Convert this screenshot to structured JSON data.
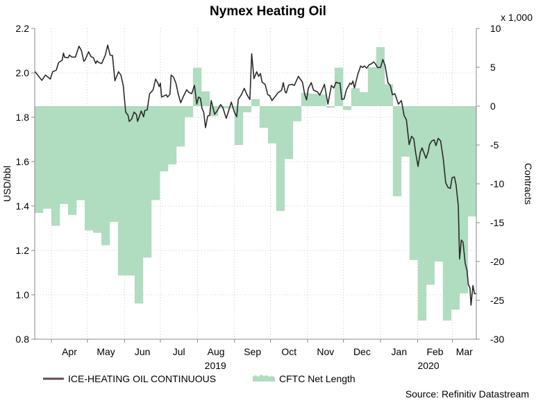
{
  "chart_data": {
    "type": "line+bar",
    "title": "Nymex Heating Oil",
    "ylabel_left": "USD/bbl",
    "ylabel_right": "Contracts",
    "right_multiplier_label": "x 1,000",
    "source": "Source: Refinitiv Datastream",
    "ylim_left": [
      0.8,
      2.2
    ],
    "yticks_left": [
      "2.2",
      "2.0",
      "1.8",
      "1.6",
      "1.4",
      "1.2",
      "1.0",
      "0.8"
    ],
    "ylim_right": [
      -30,
      10
    ],
    "yticks_right": [
      "10",
      "5",
      "0",
      "-5",
      "-10",
      "-15",
      "-20",
      "-25",
      "-30"
    ],
    "x_unit": "days since 2019-03-18",
    "xlim": [
      0,
      369
    ],
    "month_boundaries": [
      14,
      44,
      75,
      105,
      136,
      167,
      197,
      228,
      258,
      289,
      320,
      349
    ],
    "months": [
      {
        "label": "Apr",
        "start": 14,
        "end": 44
      },
      {
        "label": "May",
        "start": 44,
        "end": 75
      },
      {
        "label": "Jun",
        "start": 75,
        "end": 105
      },
      {
        "label": "Jul",
        "start": 105,
        "end": 136
      },
      {
        "label": "Aug",
        "start": 136,
        "end": 167
      },
      {
        "label": "Sep",
        "start": 167,
        "end": 197
      },
      {
        "label": "Oct",
        "start": 197,
        "end": 228
      },
      {
        "label": "Nov",
        "start": 228,
        "end": 258
      },
      {
        "label": "Dec",
        "start": 258,
        "end": 289
      },
      {
        "label": "Jan",
        "start": 289,
        "end": 320
      },
      {
        "label": "Feb",
        "start": 320,
        "end": 349
      },
      {
        "label": "Mar",
        "start": 349,
        "end": 369
      }
    ],
    "years": [
      {
        "label": "2019",
        "center": 151
      },
      {
        "label": "2020",
        "center": 329
      }
    ],
    "grid": true,
    "legend_position": "bottom-left",
    "series": [
      {
        "name": "ICE-HEATING OIL CONTINUOUS",
        "type": "line",
        "axis": "left",
        "color": "#2a2a2a",
        "legend_color": "#604858",
        "points": [
          [
            0,
            2.007
          ],
          [
            6,
            1.966
          ],
          [
            9,
            1.99
          ],
          [
            13,
            1.972
          ],
          [
            15,
            2.005
          ],
          [
            18,
            2.012
          ],
          [
            20,
            2.047
          ],
          [
            23,
            2.057
          ],
          [
            24,
            2.089
          ],
          [
            25,
            2.07
          ],
          [
            28,
            2.068
          ],
          [
            29,
            2.08
          ],
          [
            31,
            2.071
          ],
          [
            34,
            2.071
          ],
          [
            37,
            2.12
          ],
          [
            39,
            2.101
          ],
          [
            41,
            2.052
          ],
          [
            42,
            2.057
          ],
          [
            45,
            2.095
          ],
          [
            47,
            2.073
          ],
          [
            49,
            2.068
          ],
          [
            51,
            2.042
          ],
          [
            52,
            2.054
          ],
          [
            54,
            2.045
          ],
          [
            56,
            2.042
          ],
          [
            59,
            2.08
          ],
          [
            61,
            2.125
          ],
          [
            63,
            2.08
          ],
          [
            65,
            2.078
          ],
          [
            67,
            1.964
          ],
          [
            70,
            2.005
          ],
          [
            72,
            1.99
          ],
          [
            74,
            1.943
          ],
          [
            76,
            1.823
          ],
          [
            78,
            1.809
          ],
          [
            79,
            1.781
          ],
          [
            81,
            1.792
          ],
          [
            83,
            1.823
          ],
          [
            85,
            1.812
          ],
          [
            86,
            1.781
          ],
          [
            89,
            1.828
          ],
          [
            91,
            1.802
          ],
          [
            92,
            1.83
          ],
          [
            94,
            1.833
          ],
          [
            96,
            1.906
          ],
          [
            98,
            1.917
          ],
          [
            99,
            1.924
          ],
          [
            101,
            1.972
          ],
          [
            103,
            1.953
          ],
          [
            104,
            1.938
          ],
          [
            105,
            1.953
          ],
          [
            106,
            1.891
          ],
          [
            108,
            1.896
          ],
          [
            110,
            1.901
          ],
          [
            111,
            1.891
          ],
          [
            113,
            1.903
          ],
          [
            114,
            1.99
          ],
          [
            116,
            1.981
          ],
          [
            118,
            1.953
          ],
          [
            120,
            1.903
          ],
          [
            122,
            1.865
          ],
          [
            124,
            1.891
          ],
          [
            127,
            1.924
          ],
          [
            128.8,
            1.912
          ],
          [
            131.1,
            1.906
          ],
          [
            133.5,
            1.943
          ],
          [
            135.4,
            1.859
          ],
          [
            136.9,
            1.891
          ],
          [
            138.5,
            1.885
          ],
          [
            139.8,
            1.839
          ],
          [
            141.2,
            1.823
          ],
          [
            142.7,
            1.753
          ],
          [
            144.6,
            1.805
          ],
          [
            146.2,
            1.809
          ],
          [
            147.5,
            1.875
          ],
          [
            150.4,
            1.813
          ],
          [
            152.4,
            1.828
          ],
          [
            155.3,
            1.857
          ],
          [
            157.2,
            1.844
          ],
          [
            160.1,
            1.795
          ],
          [
            162,
            1.828
          ],
          [
            164.3,
            1.868
          ],
          [
            166.8,
            1.823
          ],
          [
            168.8,
            1.802
          ],
          [
            170.1,
            1.88
          ],
          [
            172.6,
            1.901
          ],
          [
            175.1,
            1.93
          ],
          [
            177.4,
            1.901
          ],
          [
            179.8,
            1.88
          ],
          [
            181.3,
            2.086
          ],
          [
            183.2,
            1.974
          ],
          [
            185.5,
            2.005
          ],
          [
            187.1,
            1.984
          ],
          [
            188.6,
            1.997
          ],
          [
            190,
            1.958
          ],
          [
            192.5,
            1.948
          ],
          [
            194.8,
            1.901
          ],
          [
            196.3,
            1.898
          ],
          [
            198.3,
            1.875
          ],
          [
            200.6,
            1.891
          ],
          [
            203.5,
            1.911
          ],
          [
            206.4,
            1.922
          ],
          [
            207.7,
            1.956
          ],
          [
            209.3,
            1.914
          ],
          [
            210.2,
            1.909
          ],
          [
            212.2,
            1.945
          ],
          [
            215.1,
            1.948
          ],
          [
            217,
            1.943
          ],
          [
            220.3,
            1.984
          ],
          [
            223.7,
            1.958
          ],
          [
            225.7,
            1.901
          ],
          [
            227.2,
            1.878
          ],
          [
            228.6,
            1.93
          ],
          [
            231.1,
            1.956
          ],
          [
            233,
            1.922
          ],
          [
            236.3,
            1.914
          ],
          [
            238.2,
            1.899
          ],
          [
            242.1,
            1.948
          ],
          [
            245,
            1.859
          ],
          [
            247.9,
            1.943
          ],
          [
            249.9,
            1.932
          ],
          [
            251.8,
            1.958
          ],
          [
            253.7,
            1.953
          ],
          [
            255.1,
            1.955
          ],
          [
            256.6,
            1.88
          ],
          [
            258.5,
            1.882
          ],
          [
            260.5,
            1.924
          ],
          [
            263.4,
            1.953
          ],
          [
            264.7,
            1.948
          ],
          [
            265.9,
            1.963
          ],
          [
            267.2,
            1.932
          ],
          [
            270.1,
            1.995
          ],
          [
            272.4,
            2.031
          ],
          [
            274,
            2.024
          ],
          [
            275.5,
            2.031
          ],
          [
            277.4,
            2.021
          ],
          [
            279.4,
            2.036
          ],
          [
            281.7,
            2.042
          ],
          [
            283.2,
            2.049
          ],
          [
            284.6,
            2.042
          ],
          [
            286.5,
            2.024
          ],
          [
            289,
            2.024
          ],
          [
            290.9,
            2.06
          ],
          [
            292.9,
            2.031
          ],
          [
            295.2,
            1.955
          ],
          [
            297.1,
            1.943
          ],
          [
            299,
            1.901
          ],
          [
            301,
            1.906
          ],
          [
            303.9,
            1.859
          ],
          [
            306.4,
            1.875
          ],
          [
            308.7,
            1.807
          ],
          [
            310.6,
            1.789
          ],
          [
            312.9,
            1.677
          ],
          [
            314.9,
            1.714
          ],
          [
            316.8,
            1.703
          ],
          [
            318.3,
            1.641
          ],
          [
            320.3,
            1.578
          ],
          [
            322.2,
            1.641
          ],
          [
            323.7,
            1.662
          ],
          [
            327,
            1.615
          ],
          [
            328.9,
            1.646
          ],
          [
            329.9,
            1.677
          ],
          [
            331.8,
            1.693
          ],
          [
            333.8,
            1.698
          ],
          [
            335.3,
            1.672
          ],
          [
            337.2,
            1.705
          ],
          [
            339.2,
            1.693
          ],
          [
            341.5,
            1.609
          ],
          [
            343.4,
            1.505
          ],
          [
            345.3,
            1.484
          ],
          [
            347.3,
            1.479
          ],
          [
            348.8,
            1.528
          ],
          [
            350.7,
            1.531
          ],
          [
            352.1,
            1.495
          ],
          [
            354,
            1.401
          ],
          [
            355,
            1.161
          ],
          [
            356.5,
            1.247
          ],
          [
            357.9,
            1.237
          ],
          [
            359.8,
            1.141
          ],
          [
            361.2,
            1.11
          ],
          [
            362.3,
            1.047
          ],
          [
            363.7,
            1.031
          ],
          [
            364.6,
            0.953
          ],
          [
            366.2,
            1.042
          ],
          [
            367.5,
            1.005
          ],
          [
            368.9,
            1.005
          ]
        ]
      },
      {
        "name": "CFTC Net Length",
        "type": "bar",
        "axis": "right",
        "unit": "thousand contracts",
        "color": "#b0dcc0",
        "week_length_days": 6.96,
        "values": [
          -13.75,
          -13.2,
          -15.4,
          -12.6,
          -14.0,
          -12.1,
          -16.0,
          -16.3,
          -17.9,
          -14.9,
          -21.8,
          -21.8,
          -25.4,
          -19.5,
          -12.1,
          -8.4,
          -7.5,
          -5.2,
          -1.4,
          4.95,
          1.9,
          -1.3,
          -0.3,
          -0.3,
          -5.0,
          -0.8,
          0.9,
          -2.8,
          -4.8,
          -13.5,
          -6.8,
          -1.95,
          1.7,
          1.6,
          1.5,
          -0.2,
          4.95,
          -0.5,
          2.3,
          1.8,
          5.0,
          7.6,
          2.8,
          -11.6,
          -6.5,
          -19.8,
          -27.6,
          -23.0,
          -20.0,
          -27.6,
          -26.2,
          -24.1,
          -14.2
        ]
      }
    ]
  }
}
